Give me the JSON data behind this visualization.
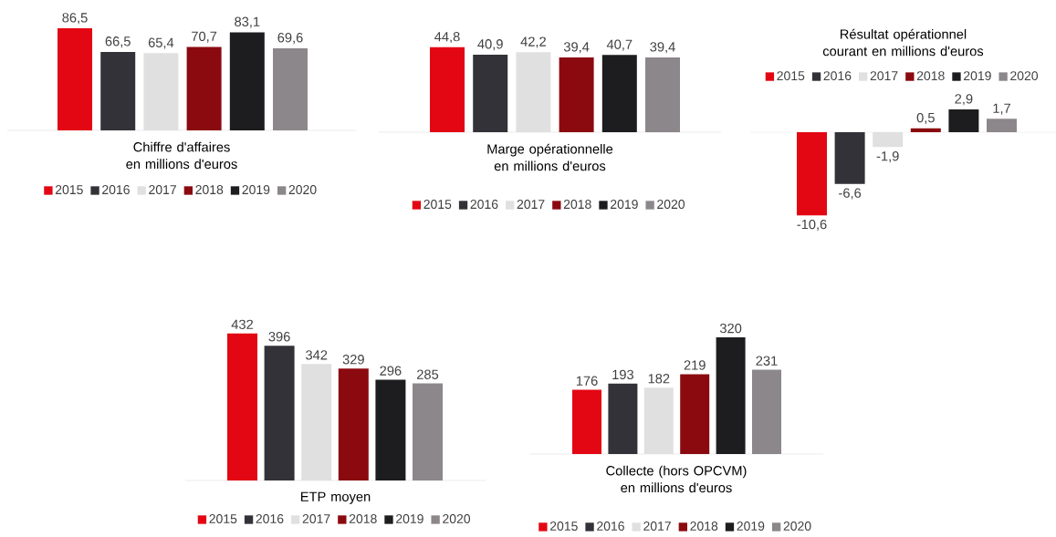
{
  "chart_data": [
    {
      "type": "bar",
      "xlabel": "Chiffre d'affaires en millions d'euros",
      "legend": "bottom",
      "categories": [
        null
      ],
      "series": [
        {
          "name": "2015",
          "color": "#e30613",
          "values": [
            86.5
          ],
          "value_labels": [
            "86,5"
          ]
        },
        {
          "name": "2016",
          "color": "#333238",
          "values": [
            66.5
          ],
          "value_labels": [
            "66,5"
          ]
        },
        {
          "name": "2017",
          "color": "#e0e0e0",
          "values": [
            65.4
          ],
          "value_labels": [
            "65,4"
          ]
        },
        {
          "name": "2018",
          "color": "#8b0a0f",
          "values": [
            70.7
          ],
          "value_labels": [
            "70,7"
          ]
        },
        {
          "name": "2019",
          "color": "#1d1d1f",
          "values": [
            83.1
          ],
          "value_labels": [
            "83,1"
          ]
        },
        {
          "name": "2020",
          "color": "#8c878a",
          "values": [
            69.6
          ],
          "value_labels": [
            "69,6"
          ]
        }
      ]
    },
    {
      "type": "bar",
      "xlabel": "Marge opérationnelle en millions d'euros",
      "legend": "bottom",
      "categories": [
        null
      ],
      "series": [
        {
          "name": "2015",
          "color": "#e30613",
          "values": [
            44.8
          ],
          "value_labels": [
            "44,8"
          ]
        },
        {
          "name": "2016",
          "color": "#333238",
          "values": [
            40.9
          ],
          "value_labels": [
            "40,9"
          ]
        },
        {
          "name": "2017",
          "color": "#e0e0e0",
          "values": [
            42.2
          ],
          "value_labels": [
            "42,2"
          ]
        },
        {
          "name": "2018",
          "color": "#8b0a0f",
          "values": [
            39.4
          ],
          "value_labels": [
            "39,4"
          ]
        },
        {
          "name": "2019",
          "color": "#1d1d1f",
          "values": [
            40.7
          ],
          "value_labels": [
            "40,7"
          ]
        },
        {
          "name": "2020",
          "color": "#8c878a",
          "values": [
            39.4
          ],
          "value_labels": [
            "39,4"
          ]
        }
      ]
    },
    {
      "type": "bar",
      "title": "Résultat opérationnel courant en millions d'euros",
      "legend": "top",
      "categories": [
        null
      ],
      "series": [
        {
          "name": "2015",
          "color": "#e30613",
          "values": [
            -10.6
          ],
          "value_labels": [
            "-10,6"
          ]
        },
        {
          "name": "2016",
          "color": "#333238",
          "values": [
            -6.6
          ],
          "value_labels": [
            "-6,6"
          ]
        },
        {
          "name": "2017",
          "color": "#e0e0e0",
          "values": [
            -1.9
          ],
          "value_labels": [
            "-1,9"
          ]
        },
        {
          "name": "2018",
          "color": "#8b0a0f",
          "values": [
            0.5
          ],
          "value_labels": [
            "0,5"
          ]
        },
        {
          "name": "2019",
          "color": "#1d1d1f",
          "values": [
            2.9
          ],
          "value_labels": [
            "2,9"
          ]
        },
        {
          "name": "2020",
          "color": "#8c878a",
          "values": [
            1.7
          ],
          "value_labels": [
            "1,7"
          ]
        }
      ]
    },
    {
      "type": "bar",
      "xlabel": "ETP moyen",
      "legend": "bottom",
      "categories": [
        null
      ],
      "series": [
        {
          "name": "2015",
          "color": "#e30613",
          "values": [
            432
          ],
          "value_labels": [
            "432"
          ]
        },
        {
          "name": "2016",
          "color": "#333238",
          "values": [
            396
          ],
          "value_labels": [
            "396"
          ]
        },
        {
          "name": "2017",
          "color": "#e0e0e0",
          "values": [
            342
          ],
          "value_labels": [
            "342"
          ]
        },
        {
          "name": "2018",
          "color": "#8b0a0f",
          "values": [
            329
          ],
          "value_labels": [
            "329"
          ]
        },
        {
          "name": "2019",
          "color": "#1d1d1f",
          "values": [
            296
          ],
          "value_labels": [
            "296"
          ]
        },
        {
          "name": "2020",
          "color": "#8c878a",
          "values": [
            285
          ],
          "value_labels": [
            "285"
          ]
        }
      ]
    },
    {
      "type": "bar",
      "xlabel": "Collecte (hors OPCVM) en millions d'euros",
      "legend": "bottom",
      "categories": [
        null
      ],
      "series": [
        {
          "name": "2015",
          "color": "#e30613",
          "values": [
            176
          ],
          "value_labels": [
            "176"
          ]
        },
        {
          "name": "2016",
          "color": "#333238",
          "values": [
            193
          ],
          "value_labels": [
            "193"
          ]
        },
        {
          "name": "2017",
          "color": "#e0e0e0",
          "values": [
            182
          ],
          "value_labels": [
            "182"
          ]
        },
        {
          "name": "2018",
          "color": "#8b0a0f",
          "values": [
            219
          ],
          "value_labels": [
            "219"
          ]
        },
        {
          "name": "2019",
          "color": "#1d1d1f",
          "values": [
            320
          ],
          "value_labels": [
            "320"
          ]
        },
        {
          "name": "2020",
          "color": "#8c878a",
          "values": [
            231
          ],
          "value_labels": [
            "231"
          ]
        }
      ]
    }
  ]
}
